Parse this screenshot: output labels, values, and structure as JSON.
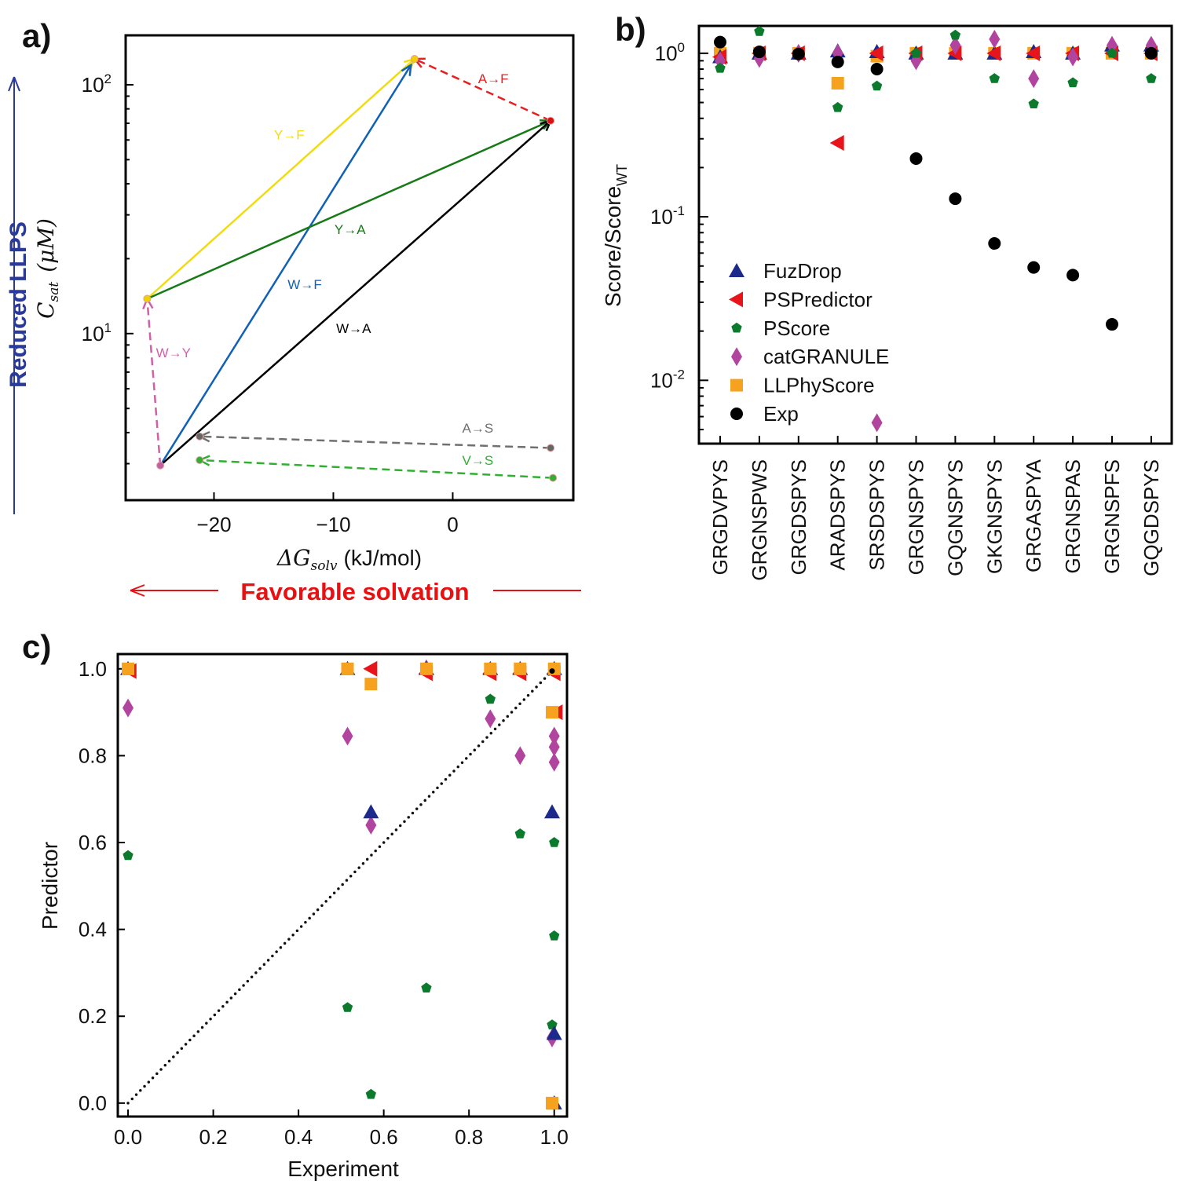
{
  "panel_labels": {
    "a": "a)",
    "b": "b)",
    "c": "c)"
  },
  "colors": {
    "FuzDrop": "#1c2a8c",
    "PSPredictor": "#e8141c",
    "PScore": "#0b7a2c",
    "catGRANULE": "#b0449e",
    "LLPhyScore": "#f7a21e",
    "Exp": "#000000"
  },
  "chart_data": [
    {
      "type": "line",
      "panel": "a",
      "xlabel": {
        "symbol": "ΔG",
        "sub": "solv",
        "unit": "(kJ/mol)"
      },
      "ylabel": {
        "symbol": "C",
        "sub": "sat",
        "unit": "(μM)"
      },
      "yscale": "log",
      "xlim": [
        -27.4,
        10.1
      ],
      "ylim": [
        2.14,
        158
      ],
      "xticks": [
        {
          "value": -20,
          "label": "−20"
        },
        {
          "value": -10,
          "label": "−10"
        },
        {
          "value": 0,
          "label": "0"
        }
      ],
      "yticks": [
        {
          "value": 10,
          "base": "10",
          "exp": "1"
        },
        {
          "value": 100,
          "base": "10",
          "exp": "2"
        }
      ],
      "side_annotation_y": "Reduced LLPS",
      "side_annotation_x": "Favorable solvation",
      "points": [
        {
          "name": "A",
          "x": 8.2,
          "y": 71.7,
          "color": "#d81010"
        },
        {
          "name": "F",
          "x": -3.2,
          "y": 127,
          "color": "#f0d000"
        },
        {
          "name": "Y",
          "x": -25.6,
          "y": 13.8,
          "color": "#f0d000"
        },
        {
          "name": "W",
          "x": -24.5,
          "y": 2.95,
          "color": "#c060a0"
        },
        {
          "name": "S-from-A",
          "x": -21.2,
          "y": 3.86,
          "color": "#666666"
        },
        {
          "name": "A-for-S",
          "x": 8.2,
          "y": 3.47,
          "color": "#666666"
        },
        {
          "name": "S-from-V",
          "x": -21.2,
          "y": 3.1,
          "color": "#30b030"
        },
        {
          "name": "V",
          "x": 8.4,
          "y": 2.63,
          "color": "#30b030"
        }
      ],
      "arrows": [
        {
          "label": "A→F",
          "from": [
            8.2,
            71.7
          ],
          "to": [
            -3.2,
            127
          ],
          "color": "#e62020",
          "dashed": true,
          "label_at": [
            3.4,
            106
          ]
        },
        {
          "label": "Y→F",
          "from": [
            -25.6,
            13.8
          ],
          "to": [
            -3.2,
            127
          ],
          "color": "#f0dc10",
          "dashed": false,
          "label_at": [
            -13.7,
            63
          ]
        },
        {
          "label": "W→F",
          "from": [
            -24.5,
            2.95
          ],
          "to": [
            -3.5,
            120
          ],
          "color": "#1060b8",
          "dashed": false,
          "label_at": [
            -12.4,
            15.8
          ]
        },
        {
          "label": "Y→A",
          "from": [
            -25.6,
            13.8
          ],
          "to": [
            8.2,
            71.7
          ],
          "color": "#167a16",
          "dashed": false,
          "label_at": [
            -8.6,
            26.3
          ]
        },
        {
          "label": "W→A",
          "from": [
            -24.5,
            2.95
          ],
          "to": [
            8.2,
            71.7
          ],
          "color": "#000000",
          "dashed": false,
          "label_at": [
            -8.3,
            10.5
          ]
        },
        {
          "label": "W→Y",
          "from": [
            -24.5,
            2.95
          ],
          "to": [
            -25.6,
            13.8
          ],
          "color": "#d060a8",
          "dashed": true,
          "label_at": [
            -23.4,
            8.4
          ]
        },
        {
          "label": "A→S",
          "from": [
            8.2,
            3.47
          ],
          "to": [
            -21.2,
            3.86
          ],
          "color": "#707070",
          "dashed": true,
          "label_at": [
            2.1,
            4.17
          ]
        },
        {
          "label": "V→S",
          "from": [
            8.4,
            2.63
          ],
          "to": [
            -21.2,
            3.1
          ],
          "color": "#30b030",
          "dashed": true,
          "label_at": [
            2.1,
            3.1
          ]
        }
      ]
    },
    {
      "type": "scatter",
      "panel": "b",
      "ylabel": {
        "main": "Score/Score",
        "sub": "WT"
      },
      "yscale": "log",
      "ylim": [
        0.0041,
        1.47
      ],
      "yticks": [
        {
          "value": 1,
          "base": "10",
          "exp": "0"
        },
        {
          "value": 0.1,
          "base": "10",
          "exp": "-1"
        },
        {
          "value": 0.01,
          "base": "10",
          "exp": "-2"
        }
      ],
      "categories": [
        "GRGDVPYS",
        "GRGNSPWS",
        "GRGDSPYS",
        "ARADSPYS",
        "SRSDSPYS",
        "GRGNSPYS",
        "GQGNSPYS",
        "GKGNSPYS",
        "GRGASPYA",
        "GRGNSPAS",
        "GRGNSPFS",
        "GQGDSPYS"
      ],
      "legend_position": "center-left",
      "series": [
        {
          "name": "FuzDrop",
          "marker": "triangle-up",
          "values": [
            0.95,
            1.0,
            1.0,
            1.03,
            1.02,
            1.0,
            1.0,
            1.0,
            1.02,
            1.0,
            1.12,
            1.12
          ]
        },
        {
          "name": "PSPredictor",
          "marker": "triangle-left",
          "values": [
            0.95,
            1.0,
            1.0,
            0.283,
            1.0,
            1.0,
            1.0,
            1.0,
            1.0,
            1.0,
            1.0,
            1.0
          ]
        },
        {
          "name": "PScore",
          "marker": "pentagon",
          "values": [
            0.81,
            1.36,
            1.0,
            0.466,
            0.63,
            1.0,
            1.29,
            0.7,
            0.49,
            0.66,
            1.0,
            0.7
          ]
        },
        {
          "name": "catGRANULE",
          "marker": "diamond",
          "values": [
            0.9,
            0.93,
            1.0,
            1.0,
            0.0055,
            0.9,
            1.12,
            1.22,
            0.7,
            0.95,
            1.12,
            1.12
          ]
        },
        {
          "name": "LLPhyScore",
          "marker": "square",
          "values": [
            1.0,
            1.0,
            1.0,
            0.656,
            0.96,
            1.0,
            1.0,
            1.0,
            1.0,
            1.0,
            1.0,
            1.0
          ]
        },
        {
          "name": "Exp",
          "marker": "circle",
          "values": [
            1.17,
            1.02,
            0.99,
            0.885,
            0.8,
            0.227,
            0.129,
            0.0687,
            0.049,
            0.044,
            0.022,
            1.0
          ]
        }
      ]
    },
    {
      "type": "scatter",
      "panel": "c",
      "xlabel": "Experiment",
      "ylabel": "Predictor",
      "xlim": [
        -0.024,
        1.03
      ],
      "ylim": [
        -0.031,
        1.034
      ],
      "xticks": [
        "0.0",
        "0.2",
        "0.4",
        "0.6",
        "0.8",
        "1.0"
      ],
      "yticks": [
        "0.0",
        "0.2",
        "0.4",
        "0.6",
        "0.8",
        "1.0"
      ],
      "reference_line": "y = x (dotted)",
      "series": [
        {
          "name": "PScore",
          "marker": "pentagon",
          "points": [
            [
              0,
              0.57
            ],
            [
              0.515,
              0.22
            ],
            [
              0.57,
              0.02
            ],
            [
              0.7,
              0.265
            ],
            [
              0.85,
              0.93
            ],
            [
              0.92,
              0.62
            ],
            [
              1.0,
              0.6
            ],
            [
              1.0,
              0.385
            ],
            [
              0.995,
              0.18
            ]
          ]
        },
        {
          "name": "catGRANULE",
          "marker": "diamond",
          "points": [
            [
              0,
              0.91
            ],
            [
              0.515,
              0.845
            ],
            [
              0.57,
              0.64
            ],
            [
              0.7,
              1.0
            ],
            [
              0.85,
              0.885
            ],
            [
              0.92,
              0.8
            ],
            [
              1.0,
              0.845
            ],
            [
              1.0,
              0.82
            ],
            [
              1.0,
              0.785
            ],
            [
              0.995,
              0.15
            ]
          ]
        },
        {
          "name": "FuzDrop",
          "marker": "triangle-up",
          "points": [
            [
              0,
              1.0
            ],
            [
              0.515,
              1.0
            ],
            [
              0.57,
              0.67
            ],
            [
              0.7,
              1.0
            ],
            [
              0.85,
              1.0
            ],
            [
              0.92,
              1.0
            ],
            [
              1.0,
              1.0
            ],
            [
              0.995,
              0.67
            ],
            [
              1.0,
              0.16
            ],
            [
              1.0,
              0.0
            ]
          ]
        },
        {
          "name": "PSPredictor",
          "marker": "triangle-left",
          "points": [
            [
              0.005,
              0.995
            ],
            [
              0.57,
              1.0
            ],
            [
              0.7,
              0.99
            ],
            [
              0.85,
              0.99
            ],
            [
              0.92,
              0.99
            ],
            [
              1.0,
              0.99
            ],
            [
              1.005,
              0.9
            ]
          ]
        },
        {
          "name": "LLPhyScore",
          "marker": "square",
          "points": [
            [
              0,
              1.0
            ],
            [
              0.515,
              1.0
            ],
            [
              0.57,
              0.965
            ],
            [
              0.7,
              1.0
            ],
            [
              0.85,
              1.0
            ],
            [
              0.92,
              1.0
            ],
            [
              1.0,
              1.0
            ],
            [
              0.995,
              0.9
            ],
            [
              0.995,
              0.0
            ]
          ]
        },
        {
          "name": "Exp",
          "marker": "circle-small",
          "points": [
            [
              0.995,
              0.995
            ]
          ]
        }
      ]
    }
  ]
}
